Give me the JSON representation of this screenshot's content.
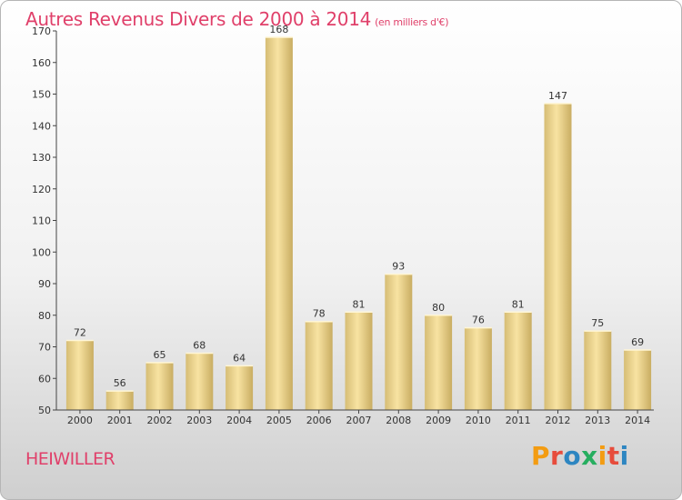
{
  "header": {
    "title": "Autres Revenus Divers de 2000 à 2014",
    "subtitle": "(en milliers d'€)"
  },
  "footer": {
    "place": "HEIWILLER",
    "brand": "Proxiti"
  },
  "colors": {
    "title": "#e0406a",
    "bar_light": "#f7e2a0",
    "bar_dark": "#cdb36a",
    "logo": [
      "#f39c12",
      "#e74c3c",
      "#2e86c1",
      "#27ae60",
      "#f39c12",
      "#e74c3c",
      "#2e86c1"
    ]
  },
  "chart_data": {
    "type": "bar",
    "title": "Autres Revenus Divers de 2000 à 2014 (en milliers d'€)",
    "categories": [
      "2000",
      "2001",
      "2002",
      "2003",
      "2004",
      "2005",
      "2006",
      "2007",
      "2008",
      "2009",
      "2010",
      "2011",
      "2012",
      "2013",
      "2014"
    ],
    "values": [
      72,
      56,
      65,
      68,
      64,
      168,
      78,
      81,
      93,
      80,
      76,
      81,
      147,
      75,
      69
    ],
    "ylim": [
      50,
      170
    ],
    "yticks": [
      50,
      60,
      70,
      80,
      90,
      100,
      110,
      120,
      130,
      140,
      150,
      160,
      170
    ],
    "grid": false,
    "legend": "none"
  }
}
